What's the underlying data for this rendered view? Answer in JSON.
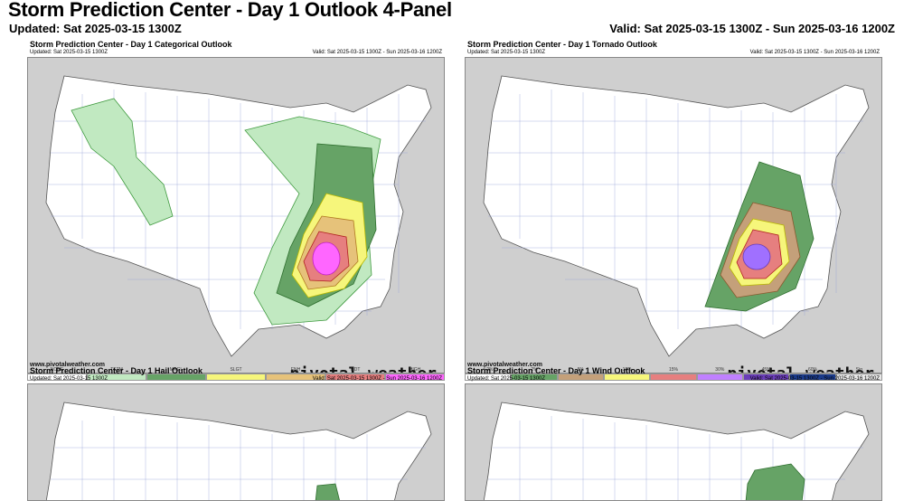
{
  "header": {
    "title": "Storm Prediction Center - Day 1 Outlook 4-Panel",
    "updated": "Updated: Sat 2025-03-15 1300Z",
    "valid": "Valid: Sat 2025-03-15 1300Z - Sun 2025-03-16 1200Z"
  },
  "panels": {
    "categorical": {
      "title": "Storm Prediction Center - Day 1 Categorical Outlook",
      "updated": "Updated: Sat 2025-03-15 1300Z",
      "valid": "Valid: Sat 2025-03-15 1300Z - Sun 2025-03-16 1200Z",
      "credit": "www.pivotalweather.com",
      "brand": "pivotal weather",
      "legend": [
        {
          "label": "NONE",
          "color": "#ffffff"
        },
        {
          "label": "TSTM",
          "color": "#c1e9c1"
        },
        {
          "label": "MRGL",
          "color": "#66a366"
        },
        {
          "label": "SLGT",
          "color": "#f6f67b"
        },
        {
          "label": "ENH",
          "color": "#e6c27a"
        },
        {
          "label": "MDT",
          "color": "#e67f7f"
        },
        {
          "label": "HIGH",
          "color": "#ff66ff"
        }
      ]
    },
    "tornado": {
      "title": "Storm Prediction Center - Day 1 Tornado Outlook",
      "updated": "Updated: Sat 2025-03-15 1300Z",
      "valid": "Valid: Sat 2025-03-15 1300Z - Sun 2025-03-16 1200Z",
      "credit": "www.pivotalweather.com",
      "brand": "pivotal weather",
      "legend": [
        {
          "label": "< 2%",
          "color": "#ffffff"
        },
        {
          "label": "2%",
          "color": "#66a366"
        },
        {
          "label": "5%",
          "color": "#c4a07a"
        },
        {
          "label": "10%",
          "color": "#f6f67b"
        },
        {
          "label": "15%",
          "color": "#e67f7f"
        },
        {
          "label": "30%",
          "color": "#c080ff"
        },
        {
          "label": "45%",
          "color": "#6a3db8"
        },
        {
          "label": "60%",
          "color": "#1a3a8a"
        },
        {
          "label": "Sig",
          "color": "#e8e8e8"
        }
      ]
    },
    "hail": {
      "title": "Storm Prediction Center - Day 1 Hail Outlook",
      "updated": "Updated: Sat 2025-03-15 1300Z",
      "valid": "Valid: Sat 2025-03-15 1300Z - Sun 2025-03-16 1200Z"
    },
    "wind": {
      "title": "Storm Prediction Center - Day 1 Wind Outlook",
      "updated": "Updated: Sat 2025-03-15 1300Z",
      "valid": "Valid: Sat 2025-03-15 1300Z - Sun 2025-03-16 1200Z"
    }
  }
}
